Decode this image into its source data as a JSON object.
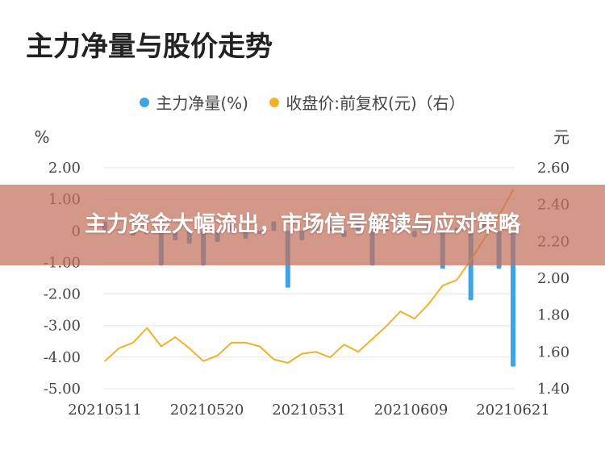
{
  "colors": {
    "bar": "#3fa3e8",
    "line": "#f0b22a",
    "grid": "#e6e6e6",
    "banner": "#c4705c"
  },
  "chart_data": {
    "type": "bar+line",
    "title": "主力净量与股价走势",
    "legend": [
      "主力净量(%)",
      "收盘价:前复权(元)（右）"
    ],
    "left_unit": "%",
    "right_unit": "元",
    "left_ticks": [
      "2.00",
      "1.00",
      "0",
      "-1.00",
      "-2.00",
      "-3.00",
      "-4.00",
      "-5.00"
    ],
    "right_ticks": [
      "2.60",
      "2.40",
      "2.20",
      "2.00",
      "1.80",
      "1.60",
      "1.40"
    ],
    "x_ticks": [
      "20210511",
      "20210520",
      "20210531",
      "20210609",
      "20210621"
    ],
    "left_ylim": [
      -5,
      2
    ],
    "right_ylim": [
      1.4,
      2.6
    ],
    "x_range": [
      0,
      29
    ],
    "series": [
      {
        "name": "主力净量(%)",
        "type": "bar",
        "x": [
          0,
          1,
          2,
          3,
          4,
          5,
          6,
          7,
          8,
          9,
          10,
          11,
          12,
          13,
          14,
          15,
          16,
          17,
          18,
          19,
          20,
          21,
          22,
          23,
          24,
          25,
          26,
          27,
          28,
          29
        ],
        "values": [
          0.3,
          0.05,
          -0.15,
          -0.1,
          -1.1,
          -0.3,
          -0.4,
          -1.1,
          -0.35,
          0.2,
          -0.25,
          -0.1,
          0.3,
          -1.8,
          -0.3,
          0.15,
          0.1,
          -0.2,
          0.25,
          -1.1,
          0.3,
          0.1,
          -0.2,
          0.2,
          -1.2,
          0.1,
          -2.2,
          0.4,
          -1.2,
          -4.3
        ]
      },
      {
        "name": "收盘价:前复权(元)（右）",
        "type": "line",
        "x": [
          0,
          1,
          2,
          3,
          4,
          5,
          6,
          7,
          8,
          9,
          10,
          11,
          12,
          13,
          14,
          15,
          16,
          17,
          18,
          19,
          20,
          21,
          22,
          23,
          24,
          25,
          26,
          27,
          28,
          29
        ],
        "values": [
          1.55,
          1.62,
          1.65,
          1.73,
          1.63,
          1.68,
          1.62,
          1.55,
          1.58,
          1.65,
          1.65,
          1.63,
          1.56,
          1.54,
          1.59,
          1.6,
          1.57,
          1.64,
          1.6,
          1.67,
          1.74,
          1.82,
          1.78,
          1.86,
          1.96,
          1.99,
          2.1,
          2.22,
          2.34,
          2.48
        ]
      }
    ]
  },
  "banner": {
    "text": "主力资金大幅流出，市场信号解读与应对策略"
  }
}
